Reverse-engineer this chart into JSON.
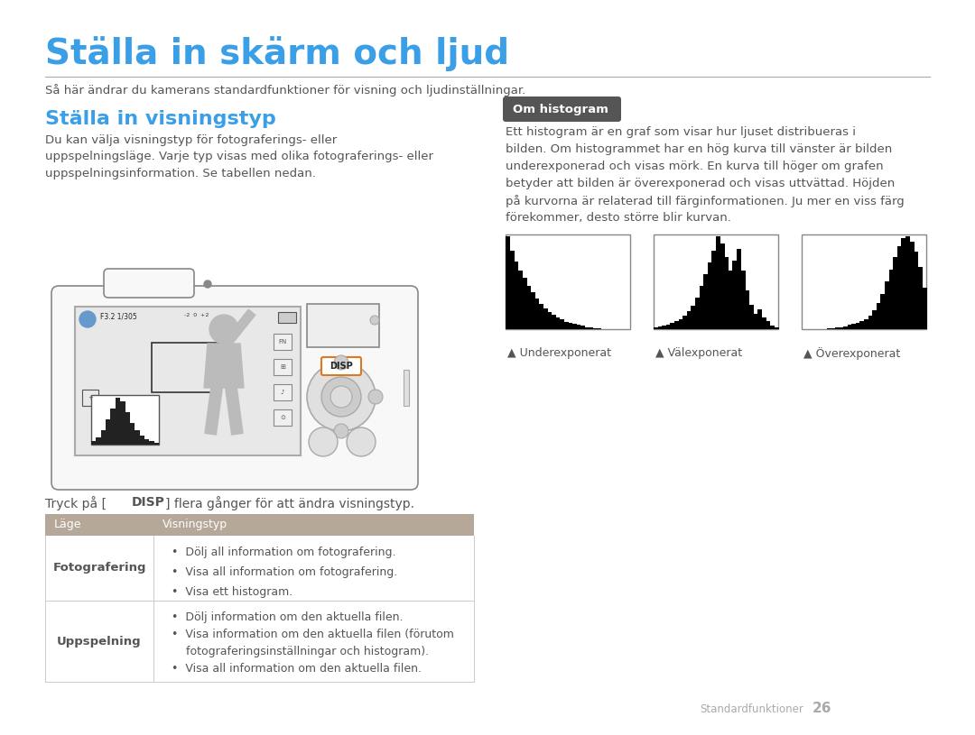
{
  "title": "Ställa in skärm och ljud",
  "subtitle": "Så här ändrar du kamerans standardfunktioner för visning och ljudinställningar.",
  "title_color": "#3b9fe8",
  "section1_title": "Ställa in visningstyp",
  "section1_color": "#3b9fe8",
  "section1_text": "Du kan välja visningstyp för fotograferings- eller\nuppspelningsläge. Varje typ visas med olika fotograferings- eller\nuppspelningsinformation. Se tabellen nedan.",
  "section2_title": "Om histogram",
  "section2_title_bg": "#555555",
  "section2_title_fg": "#ffffff",
  "section2_text_lines": [
    "Ett histogram är en graf som visar hur ljuset distribueras i",
    "bilden. Om histogrammet har en hög kurva till vänster är bilden",
    "underexponerad och visas mörk. En kurva till höger om grafen",
    "betyder att bilden är överexponerad och visas uttvättad. Höjden",
    "på kurvorna är relaterad till färginformationen. Ju mer en viss färg",
    "förekommer, desto större blir kurvan."
  ],
  "hist_labels": [
    "Underexponerat",
    "Välexponerat",
    "Överexponerat"
  ],
  "table_header": [
    "Läge",
    "Visningstyp"
  ],
  "table_header_bg": "#b5a898",
  "table_row1_label": "Fotografering",
  "table_row1_items": [
    "Dölj all information om fotografering.",
    "Visa all information om fotografering.",
    "Visa ett histogram."
  ],
  "table_row2_label": "Uppspelning",
  "table_row2_items": [
    "Dölj information om den aktuella filen.",
    "Visa information om den aktuella filen (förutom",
    "fotograferingsinställningar och histogram).",
    "Visa all information om den aktuella filen."
  ],
  "footer_text": "Standardfunktioner",
  "footer_num": "26",
  "bg_color": "#ffffff",
  "text_color": "#555555",
  "light_text": "#888888",
  "orange_color": "#e07820",
  "under_hist": [
    85,
    72,
    62,
    54,
    47,
    40,
    34,
    28,
    23,
    19,
    16,
    13,
    11,
    9,
    7,
    6,
    5,
    4,
    3,
    2,
    2,
    1,
    1,
    0,
    0,
    0,
    0,
    0,
    0,
    0
  ],
  "well_hist": [
    2,
    3,
    4,
    5,
    6,
    8,
    10,
    14,
    18,
    24,
    32,
    44,
    56,
    68,
    80,
    95,
    88,
    74,
    60,
    70,
    82,
    60,
    40,
    25,
    16,
    20,
    12,
    8,
    4,
    2
  ],
  "over_hist": [
    0,
    0,
    0,
    0,
    0,
    0,
    1,
    1,
    2,
    2,
    3,
    4,
    5,
    6,
    8,
    10,
    13,
    18,
    25,
    34,
    46,
    58,
    70,
    80,
    88,
    90,
    85,
    75,
    60,
    40
  ]
}
